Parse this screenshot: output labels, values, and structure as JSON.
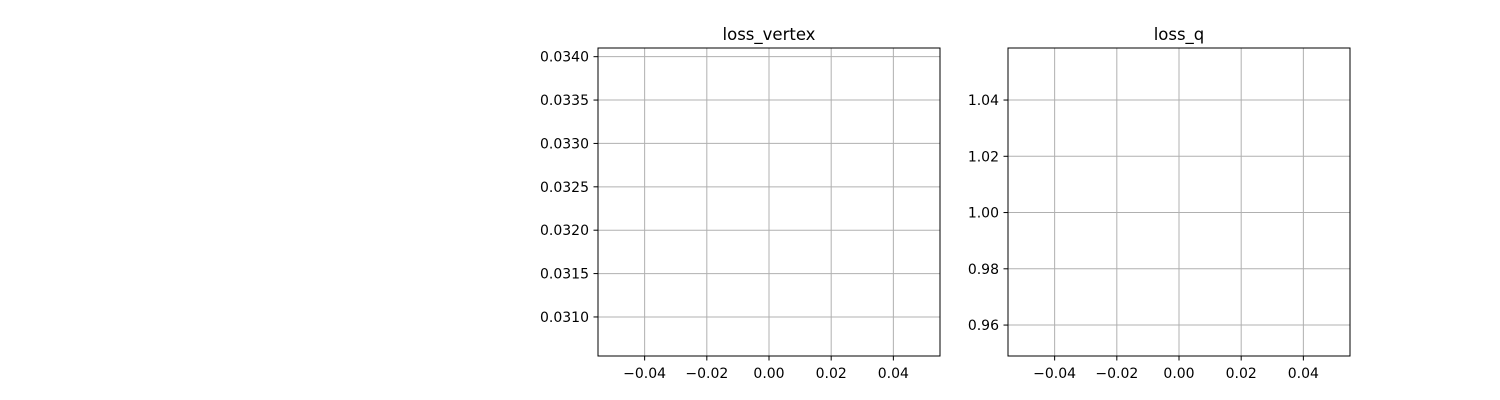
{
  "chart_data": [
    {
      "type": "line",
      "title": "loss_vertex",
      "xlabel": "",
      "ylabel": "",
      "x": [],
      "series": [
        {
          "values": []
        }
      ],
      "xlim": [
        -0.055,
        0.055
      ],
      "ylim": [
        0.03055,
        0.0341
      ],
      "xticks": [
        -0.04,
        -0.02,
        0.0,
        0.02,
        0.04
      ],
      "xtick_labels": [
        "−0.04",
        "−0.02",
        "0.00",
        "0.02",
        "0.04"
      ],
      "yticks": [
        0.031,
        0.0315,
        0.032,
        0.0325,
        0.033,
        0.0335,
        0.034
      ],
      "ytick_labels": [
        "0.0310",
        "0.0315",
        "0.0320",
        "0.0325",
        "0.0330",
        "0.0335",
        "0.0340"
      ],
      "grid": true,
      "legend": "none"
    },
    {
      "type": "line",
      "title": "loss_q",
      "xlabel": "",
      "ylabel": "",
      "x": [],
      "series": [
        {
          "values": []
        }
      ],
      "xlim": [
        -0.055,
        0.055
      ],
      "ylim": [
        0.949,
        1.0585
      ],
      "xticks": [
        -0.04,
        -0.02,
        0.0,
        0.02,
        0.04
      ],
      "xtick_labels": [
        "−0.04",
        "−0.02",
        "0.00",
        "0.02",
        "0.04"
      ],
      "yticks": [
        0.96,
        0.98,
        1.0,
        1.02,
        1.04
      ],
      "ytick_labels": [
        "0.96",
        "0.98",
        "1.00",
        "1.02",
        "1.04"
      ],
      "grid": true,
      "legend": "none"
    }
  ],
  "colors": {
    "grid": "#b0b0b0",
    "axes": "#000000",
    "background": "#ffffff"
  }
}
